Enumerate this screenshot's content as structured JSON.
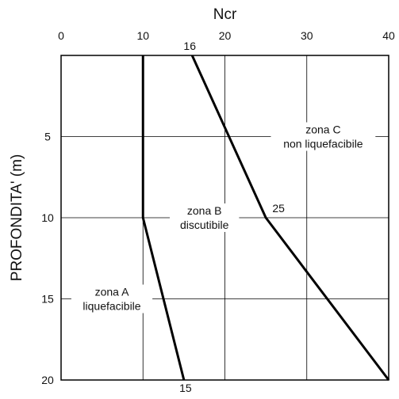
{
  "chart_data": {
    "type": "line",
    "xlabel": "Ncr",
    "ylabel": "PROFONDITA' (m)",
    "xlim": [
      0,
      40
    ],
    "ylim": [
      0,
      20
    ],
    "y_inverted": true,
    "x_axis_position": "top",
    "grid": true,
    "x_ticks": [
      0,
      10,
      20,
      30,
      40
    ],
    "y_ticks": [
      5,
      10,
      15,
      20
    ],
    "series": [
      {
        "x": [
          10,
          10,
          15
        ],
        "y": [
          0,
          10,
          20
        ]
      },
      {
        "x": [
          16,
          25,
          40
        ],
        "y": [
          0,
          10,
          20
        ]
      }
    ],
    "point_labels": [
      {
        "text": "16",
        "x": 16,
        "y": 0
      },
      {
        "text": "25",
        "x": 25,
        "y": 10
      },
      {
        "text": "15",
        "x": 15,
        "y": 20
      }
    ],
    "zones": [
      {
        "lines": [
          "zona A",
          "liquefacibile"
        ],
        "x": 6.2,
        "y": 15
      },
      {
        "lines": [
          "zona B",
          "discutibile"
        ],
        "x": 17.5,
        "y": 10
      },
      {
        "lines": [
          "zona C",
          "non liquefacibile"
        ],
        "x": 32,
        "y": 5
      }
    ]
  }
}
